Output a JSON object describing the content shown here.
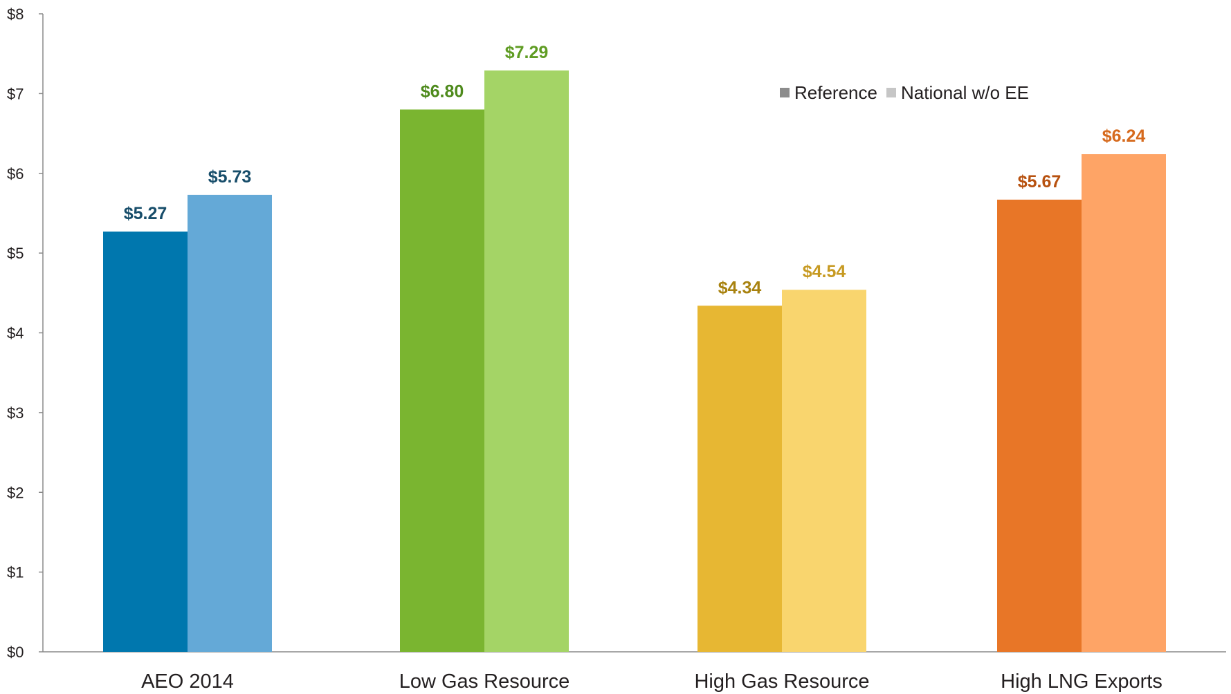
{
  "chart_data": {
    "type": "bar",
    "title": "",
    "xlabel": "",
    "ylabel": "",
    "ylim": [
      0,
      8
    ],
    "yticks": [
      0,
      1,
      2,
      3,
      4,
      5,
      6,
      7,
      8
    ],
    "ytick_labels": [
      "$0",
      "$1",
      "$2",
      "$3",
      "$4",
      "$5",
      "$6",
      "$7",
      "$8"
    ],
    "grid": false,
    "legend_position": "top-right",
    "categories": [
      "AEO 2014",
      "Low Gas Resource",
      "High Gas Resource",
      "High LNG Exports"
    ],
    "series": [
      {
        "name": "Reference",
        "legend_color": "#8c8c8c",
        "values": [
          5.27,
          6.8,
          4.34,
          5.67
        ],
        "labels": [
          "$5.27",
          "$6.80",
          "$4.34",
          "$5.67"
        ],
        "colors": [
          "#0077ae",
          "#7ab530",
          "#e7b733",
          "#e87627"
        ]
      },
      {
        "name": "National w/o EE",
        "legend_color": "#c6c6c6",
        "values": [
          5.73,
          7.29,
          4.54,
          6.24
        ],
        "labels": [
          "$5.73",
          "$7.29",
          "$4.54",
          "$6.24"
        ],
        "colors": [
          "#64a9d7",
          "#a4d466",
          "#f9d56e",
          "#fea466"
        ]
      }
    ],
    "label_colors": [
      "#174d6a",
      "#4e8a1c",
      "#a8820f",
      "#b7510f"
    ],
    "label_colors_alt": [
      "#174d6a",
      "#5f9c23",
      "#c79a22",
      "#d66a1d"
    ]
  }
}
